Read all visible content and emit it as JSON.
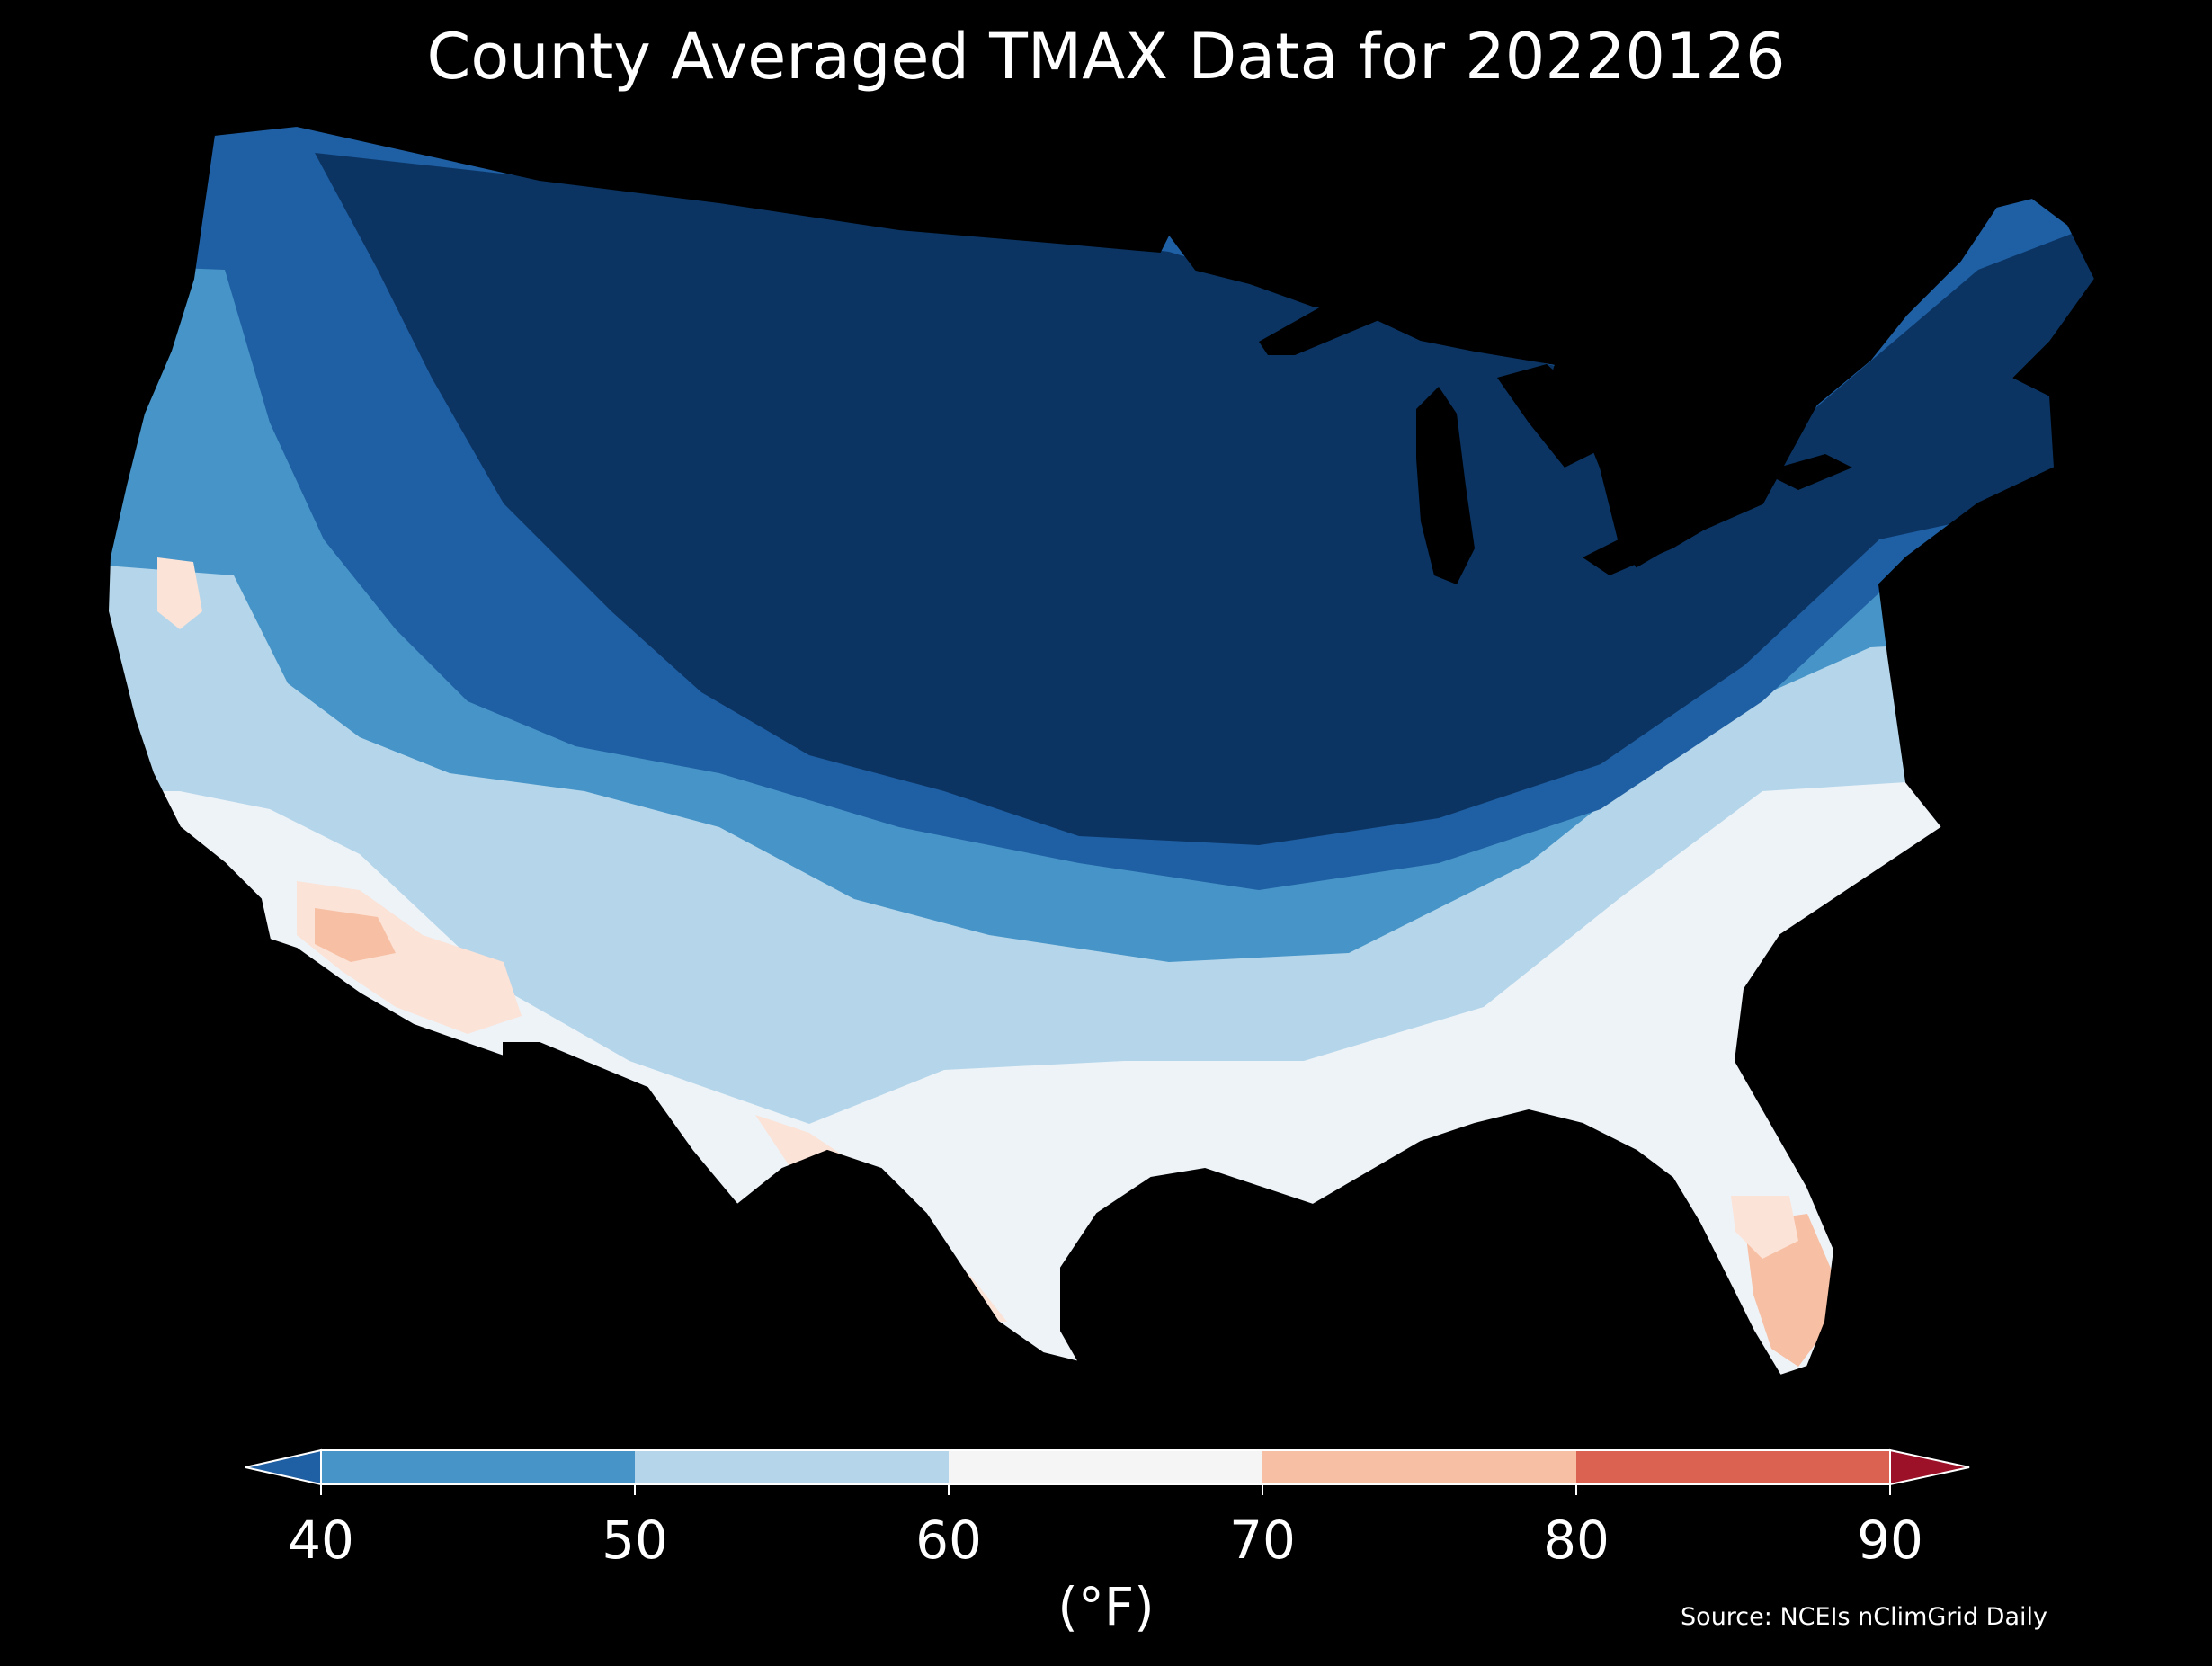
{
  "title": "County Averaged TMAX Data for 20220126",
  "colorbar": {
    "unit_label": "(°F)",
    "ticks": [
      "40",
      "50",
      "60",
      "70",
      "80",
      "90"
    ],
    "bins": [
      {
        "range": "< 40",
        "color": "#1f5fa3"
      },
      {
        "range": "40-50",
        "color": "#4694c8"
      },
      {
        "range": "50-60",
        "color": "#b5d6ea"
      },
      {
        "range": "60-70",
        "color": "#f5f5f5"
      },
      {
        "range": "70-80",
        "color": "#f7bfa3"
      },
      {
        "range": "80-90",
        "color": "#db6251"
      },
      {
        "range": "> 90",
        "color": "#9c1128"
      }
    ]
  },
  "source": "Source: NCEIs nClimGrid Daily",
  "colors": {
    "background": "#000000",
    "coldest": "#0b3463",
    "cold": "#1f5fa3",
    "cool": "#4694c8",
    "mild": "#b5d6ea",
    "neutral": "#eef3f8",
    "warm": "#fbe3d7",
    "warmer": "#f7bfa3"
  }
}
